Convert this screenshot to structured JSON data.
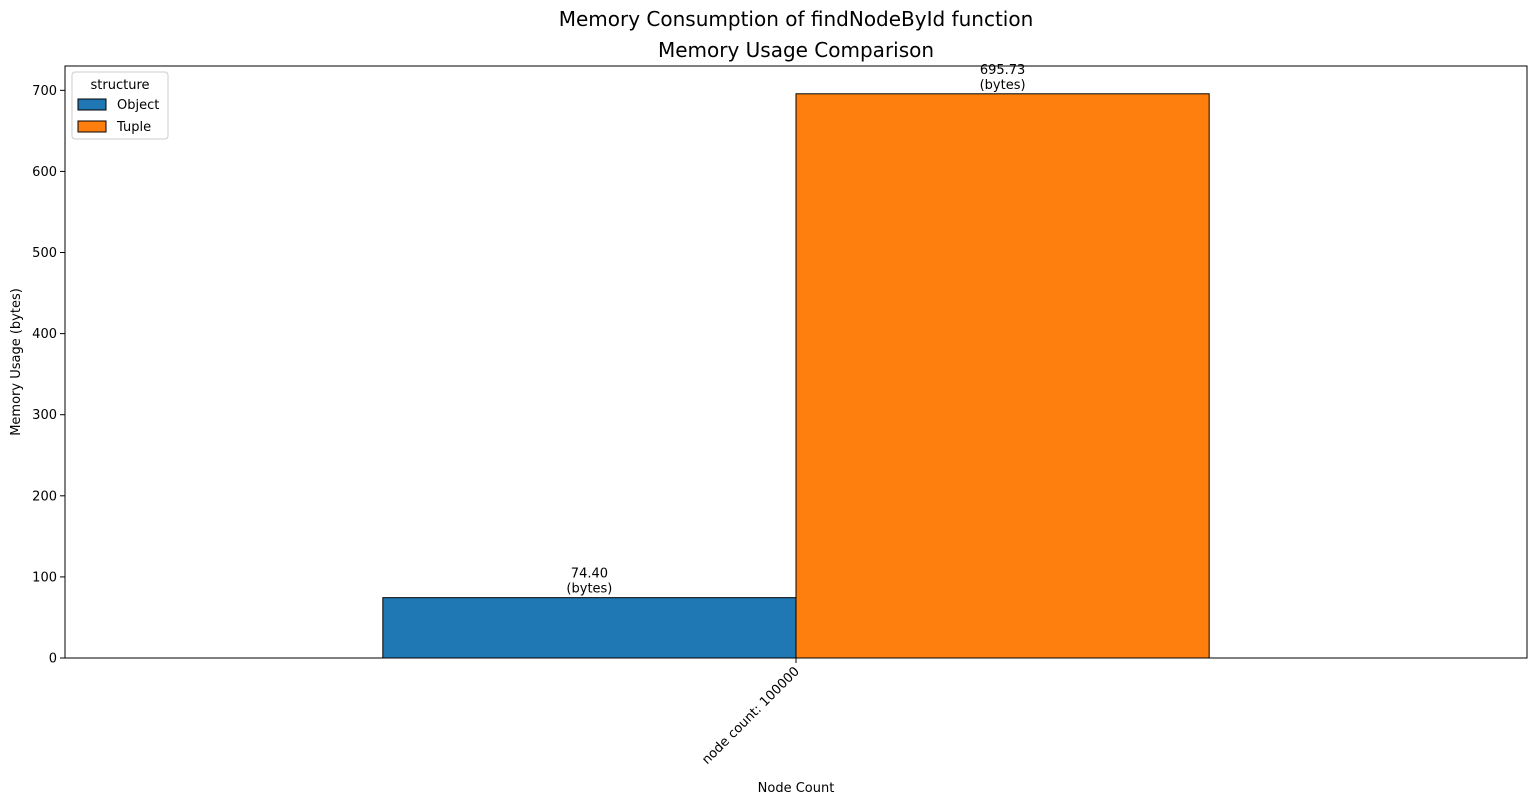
{
  "chart_data": {
    "type": "bar",
    "suptitle": "Memory Consumption of findNodeById function",
    "title": "Memory Usage Comparison",
    "xlabel": "Node Count",
    "ylabel": "Memory Usage (bytes)",
    "categories": [
      "node count: 100000"
    ],
    "series": [
      {
        "name": "Object",
        "values": [
          74.4
        ],
        "labels": [
          "74.40"
        ],
        "color": "#1f77b4"
      },
      {
        "name": "Tuple",
        "values": [
          695.73
        ],
        "labels": [
          "695.73"
        ],
        "color": "#ff7f0e"
      }
    ],
    "value_unit_label": "(bytes)",
    "ylim": [
      0,
      730
    ],
    "yticks": [
      0,
      100,
      200,
      300,
      400,
      500,
      600,
      700
    ],
    "grid": false,
    "legend": {
      "title": "structure",
      "position": "top-left"
    },
    "bar_edge_color": "#000000"
  }
}
